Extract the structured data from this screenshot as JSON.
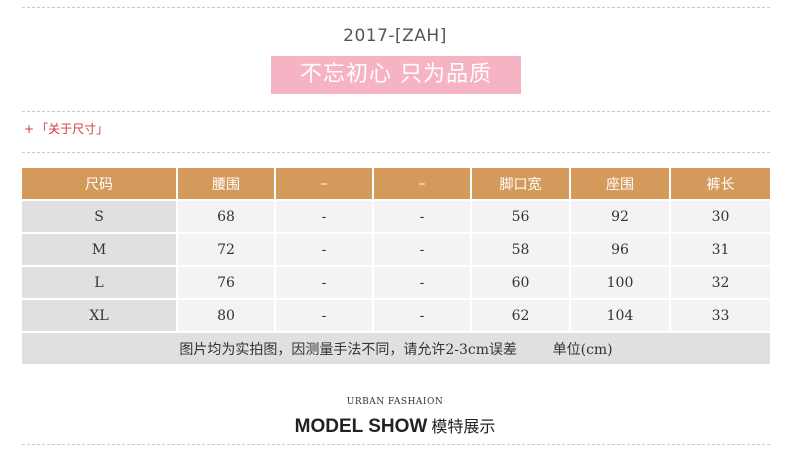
{
  "header": {
    "brand": "2017-[ZAH]",
    "slogan": "不忘初心  只为品质"
  },
  "section": {
    "plus": "+",
    "label": "「关于尺寸」"
  },
  "size_table": {
    "columns": [
      "尺码",
      "腰围",
      "–",
      "–",
      "脚口宽",
      "座围",
      "裤长"
    ],
    "rows": [
      [
        "S",
        "68",
        "-",
        "-",
        "56",
        "92",
        "30"
      ],
      [
        "M",
        "72",
        "-",
        "-",
        "58",
        "96",
        "31"
      ],
      [
        "L",
        "76",
        "-",
        "-",
        "60",
        "100",
        "32"
      ],
      [
        "XL",
        "80",
        "-",
        "-",
        "62",
        "104",
        "33"
      ]
    ],
    "note": "图片均为实拍图，因测量手法不同，请允许2-3cm误差        单位(cm)"
  },
  "footer": {
    "subtitle": "URBAN FASHAION",
    "title_en": "MODEL SHOW",
    "title_cn": "模特展示"
  },
  "colors": {
    "header_fill": "#d39a5c",
    "slogan_fill": "#f6b3c3",
    "accent_red": "#d8373e",
    "row_gray": "#e0e0e0",
    "cell_light": "#f3f3f3"
  }
}
